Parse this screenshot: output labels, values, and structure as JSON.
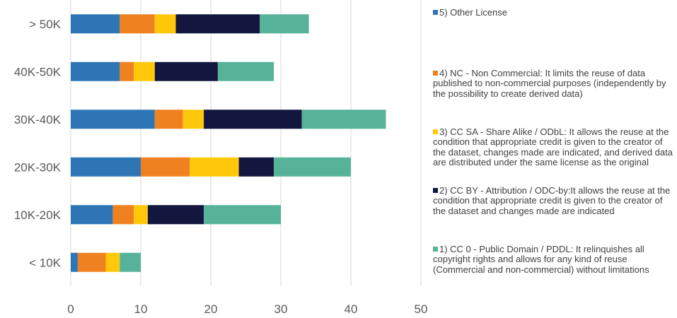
{
  "chart_data": {
    "type": "bar",
    "orientation": "horizontal",
    "stacked": true,
    "categories": [
      "> 50K",
      "40K-50K",
      "30K-40K",
      "20K-30K",
      "10K-20K",
      "< 10K"
    ],
    "series": [
      {
        "name": "5) Other License",
        "color": "#2e75b6",
        "values": [
          7,
          7,
          12,
          10,
          6,
          1
        ]
      },
      {
        "name": "4) NC - Non Commercial: It limits the reuse of data published to non-commercial purposes (independently by the possibility to create derived data)",
        "color": "#f08120",
        "values": [
          5,
          2,
          4,
          7,
          3,
          4
        ]
      },
      {
        "name": "3) CC SA - Share Alike / ODbL: It allows the reuse at the condition that appropriate credit is given to the creator of the dataset, changes made are indicated, and derived data are distributed under the same license as the original",
        "color": "#ffc80a",
        "values": [
          3,
          3,
          3,
          7,
          2,
          2
        ]
      },
      {
        "name": "2) CC BY - Attribution / ODC-by:It allows the reuse at the condition that appropriate credit is given to the creator of the dataset and changes made are indicated",
        "color": "#13173f",
        "values": [
          12,
          9,
          14,
          5,
          8,
          0
        ]
      },
      {
        "name": "1) CC 0 - Public Domain / PDDL: It relinquishes all copyright rights and allows for any kind of reuse (Commercial and non-commercial) without limitations",
        "color": "#56b39a",
        "values": [
          7,
          8,
          12,
          11,
          11,
          3
        ]
      }
    ],
    "xlim": [
      0,
      50
    ],
    "xticks": [
      0,
      10,
      20,
      30,
      40,
      50
    ],
    "grid": true,
    "legend_position": "right"
  }
}
